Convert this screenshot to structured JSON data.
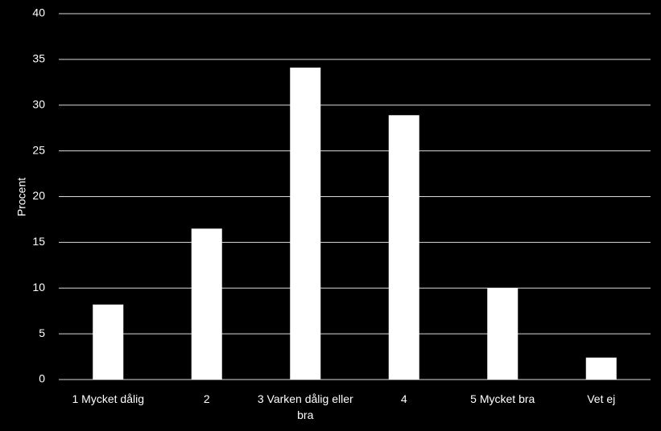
{
  "chart_data": {
    "type": "bar",
    "y_label": "Procent",
    "categories": [
      "1 Mycket dålig",
      "2",
      "3 Varken dålig eller bra",
      "4",
      "5 Mycket bra",
      "Vet ej"
    ],
    "values": [
      8.2,
      16.5,
      34.1,
      28.9,
      10.0,
      2.4
    ],
    "color": "#ffffff",
    "ylim": [
      0,
      40
    ],
    "yticks": [
      0,
      5,
      10,
      15,
      20,
      25,
      30,
      35,
      40
    ],
    "grid": true
  }
}
